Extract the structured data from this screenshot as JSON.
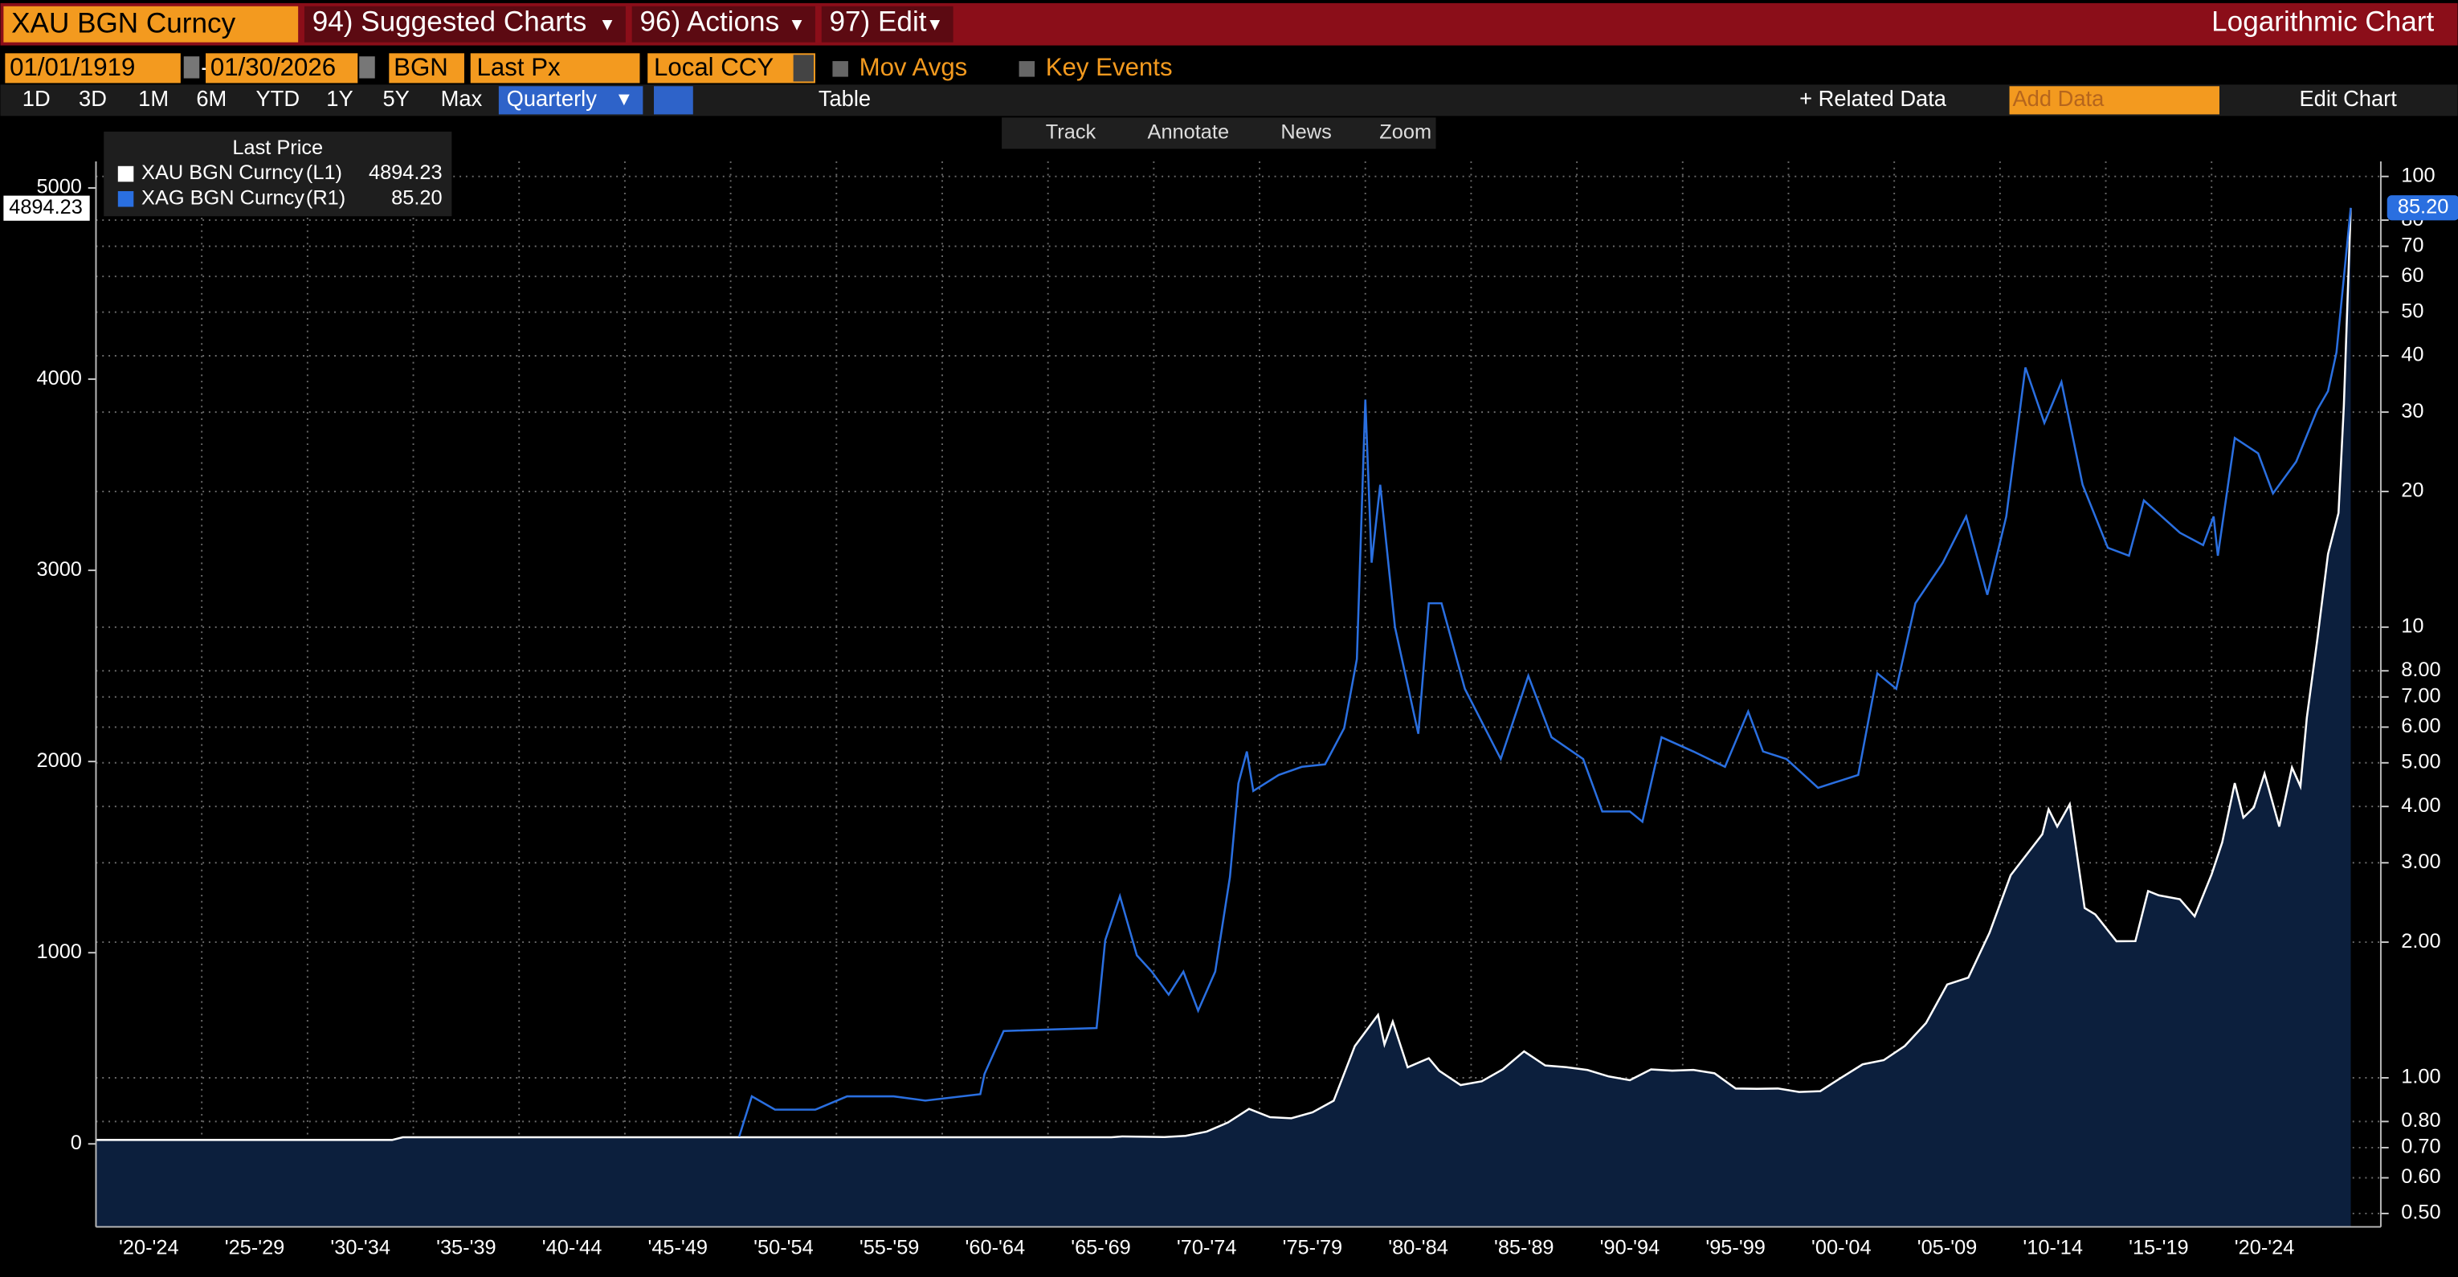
{
  "header": {
    "security": "XAU BGN Curncy",
    "menus": [
      "94) Suggested Charts",
      "96) Actions",
      "97) Edit"
    ],
    "title": "Logarithmic Chart"
  },
  "settings_bar": {
    "start_date": "01/01/1919",
    "end_date": "01/30/2026",
    "source": "BGN",
    "field": "Last Px",
    "currency": "Local CCY",
    "toggles": [
      "Mov Avgs",
      "Key Events"
    ]
  },
  "range_bar": {
    "ranges": [
      "1D",
      "3D",
      "1M",
      "6M",
      "YTD",
      "1Y",
      "5Y",
      "Max"
    ],
    "frequency": "Quarterly",
    "table": "Table",
    "related": "+ Related Data",
    "add_data": "Add Data",
    "edit": "Edit Chart"
  },
  "tools": [
    "Track",
    "Annotate",
    "News",
    "Zoom"
  ],
  "chart_data": {
    "type": "line",
    "legend_title": "Last Price",
    "grid": true,
    "y2log": true,
    "xlim": [
      1919.5,
      2027.5
    ],
    "xticks": [
      {
        "value": 1922,
        "label": "'20-'24"
      },
      {
        "value": 1927,
        "label": "'25-'29"
      },
      {
        "value": 1932,
        "label": "'30-'34"
      },
      {
        "value": 1937,
        "label": "'35-'39"
      },
      {
        "value": 1942,
        "label": "'40-'44"
      },
      {
        "value": 1947,
        "label": "'45-'49"
      },
      {
        "value": 1952,
        "label": "'50-'54"
      },
      {
        "value": 1957,
        "label": "'55-'59"
      },
      {
        "value": 1962,
        "label": "'60-'64"
      },
      {
        "value": 1967,
        "label": "'65-'69"
      },
      {
        "value": 1972,
        "label": "'70-'74"
      },
      {
        "value": 1977,
        "label": "'75-'79"
      },
      {
        "value": 1982,
        "label": "'80-'84"
      },
      {
        "value": 1987,
        "label": "'85-'89"
      },
      {
        "value": 1992,
        "label": "'90-'94"
      },
      {
        "value": 1997,
        "label": "'95-'99"
      },
      {
        "value": 2002,
        "label": "'00-'04"
      },
      {
        "value": 2007,
        "label": "'05-'09"
      },
      {
        "value": 2012,
        "label": "'10-'14"
      },
      {
        "value": 2017,
        "label": "'15-'19"
      },
      {
        "value": 2022,
        "label": "'20-'24"
      }
    ],
    "ylim": [
      -434,
      5139
    ],
    "yticks": [
      0,
      1000,
      2000,
      3000,
      4000,
      5000
    ],
    "y2lim": [
      0.467,
      108
    ],
    "y2ticks": [
      100,
      80,
      70,
      60,
      50,
      40,
      30,
      20,
      10,
      {
        "value": 8,
        "label": "8.00"
      },
      {
        "value": 7,
        "label": "7.00"
      },
      {
        "value": 6,
        "label": "6.00"
      },
      {
        "value": 5,
        "label": "5.00"
      },
      {
        "value": 4,
        "label": "4.00"
      },
      {
        "value": 3,
        "label": "3.00"
      },
      {
        "value": 2,
        "label": "2.00"
      },
      {
        "value": 1,
        "label": "1.00"
      },
      {
        "value": 0.8,
        "label": "0.80"
      },
      {
        "value": 0.7,
        "label": "0.70"
      },
      {
        "value": 0.6,
        "label": "0.60"
      },
      {
        "value": 0.5,
        "label": "0.50"
      }
    ],
    "series": [
      {
        "name": "XAU BGN Curncy",
        "axis_tag": "(L1)",
        "color": "#ffffff",
        "area_color": "#0c1f3d",
        "last": 4894.23,
        "x": [
          1919.5,
          1933.5,
          1934,
          1967.5,
          1968,
          1970,
          1971,
          1972,
          1973,
          1974,
          1975,
          1976,
          1977,
          1978,
          1979,
          1980.1,
          1980.4,
          1980.8,
          1981.5,
          1982.5,
          1983,
          1984,
          1985,
          1986,
          1987,
          1988,
          1989,
          1990,
          1991,
          1992,
          1993,
          1994,
          1995,
          1996,
          1997,
          1998,
          1999,
          2000,
          2001,
          2002,
          2003,
          2004,
          2005,
          2006,
          2007,
          2008,
          2009,
          2010,
          2011.5,
          2011.8,
          2012.2,
          2012.8,
          2013.5,
          2014,
          2015,
          2015.9,
          2016.5,
          2017,
          2018,
          2018.7,
          2019.5,
          2020,
          2020.6,
          2021,
          2021.5,
          2022,
          2022.7,
          2023.3,
          2023.7,
          2024,
          2024.5,
          2025,
          2025.5,
          2025.75,
          2026.08
        ],
        "values": [
          20.67,
          20.67,
          35,
          35,
          39,
          36,
          42,
          64,
          112,
          183,
          140,
          134,
          165,
          226,
          512,
          675,
          520,
          640,
          400,
          448,
          382,
          308,
          327,
          390,
          484,
          410,
          401,
          386,
          353,
          333,
          390,
          383,
          387,
          369,
          290,
          288,
          290,
          272,
          276,
          347,
          416,
          438,
          513,
          632,
          834,
          870,
          1104,
          1405,
          1620,
          1750,
          1660,
          1776,
          1234,
          1200,
          1060,
          1061,
          1322,
          1300,
          1280,
          1190,
          1409,
          1577,
          1887,
          1707,
          1760,
          1937,
          1660,
          1969,
          1870,
          2230,
          2640,
          3085,
          3300,
          3860,
          4894.23
        ]
      },
      {
        "name": "XAG BGN Curncy",
        "axis": "y2",
        "axis_tag": "(R1)",
        "color": "#2a6fe0",
        "last": {
          "value": 85.2,
          "label": "85.20"
        },
        "x": [
          1949.9,
          1950.5,
          1951.6,
          1953.5,
          1955,
          1957.2,
          1958.7,
          1961.3,
          1961.5,
          1962.4,
          1966.8,
          1967.2,
          1967.9,
          1968.7,
          1969.4,
          1970.2,
          1970.9,
          1971.6,
          1972.4,
          1973.1,
          1973.5,
          1973.9,
          1974.2,
          1975.4,
          1976.5,
          1977.6,
          1978.5,
          1979.1,
          1979.5,
          1979.8,
          1980.2,
          1980.9,
          1982,
          1982.5,
          1983.1,
          1984.2,
          1985.9,
          1987.2,
          1988.3,
          1989.8,
          1990.7,
          1992,
          1992.6,
          1993.5,
          1995,
          1996.5,
          1997.6,
          1998.3,
          1999.4,
          2000.9,
          2002.8,
          2003.7,
          2004.6,
          2005.5,
          2006.8,
          2007.9,
          2008.9,
          2009.8,
          2010.7,
          2011.6,
          2012.4,
          2013.4,
          2014.6,
          2015.6,
          2016.3,
          2018,
          2019.1,
          2019.6,
          2019.8,
          2020.6,
          2021.7,
          2022.4,
          2023.5,
          2024.5,
          2025,
          2025.4,
          2026.08
        ],
        "values": [
          0.74,
          0.91,
          0.85,
          0.85,
          0.91,
          0.91,
          0.89,
          0.92,
          1.02,
          1.27,
          1.29,
          2.02,
          2.53,
          1.87,
          1.72,
          1.53,
          1.72,
          1.41,
          1.72,
          2.79,
          4.5,
          5.3,
          4.33,
          4.7,
          4.9,
          4.96,
          5.97,
          8.5,
          32,
          13.9,
          20.7,
          10,
          5.8,
          11.3,
          11.3,
          7.3,
          5.1,
          7.8,
          5.7,
          5.1,
          3.9,
          3.9,
          3.7,
          5.7,
          5.3,
          4.9,
          6.5,
          5.3,
          5.1,
          4.4,
          4.7,
          7.9,
          7.3,
          11.3,
          13.9,
          17.6,
          11.8,
          17.6,
          37.7,
          28.4,
          35,
          20.7,
          15,
          14.4,
          19.1,
          16.2,
          15.2,
          17.6,
          14.4,
          26.3,
          24.3,
          19.8,
          23.3,
          30.4,
          33.4,
          40.7,
          85.2
        ]
      }
    ]
  }
}
